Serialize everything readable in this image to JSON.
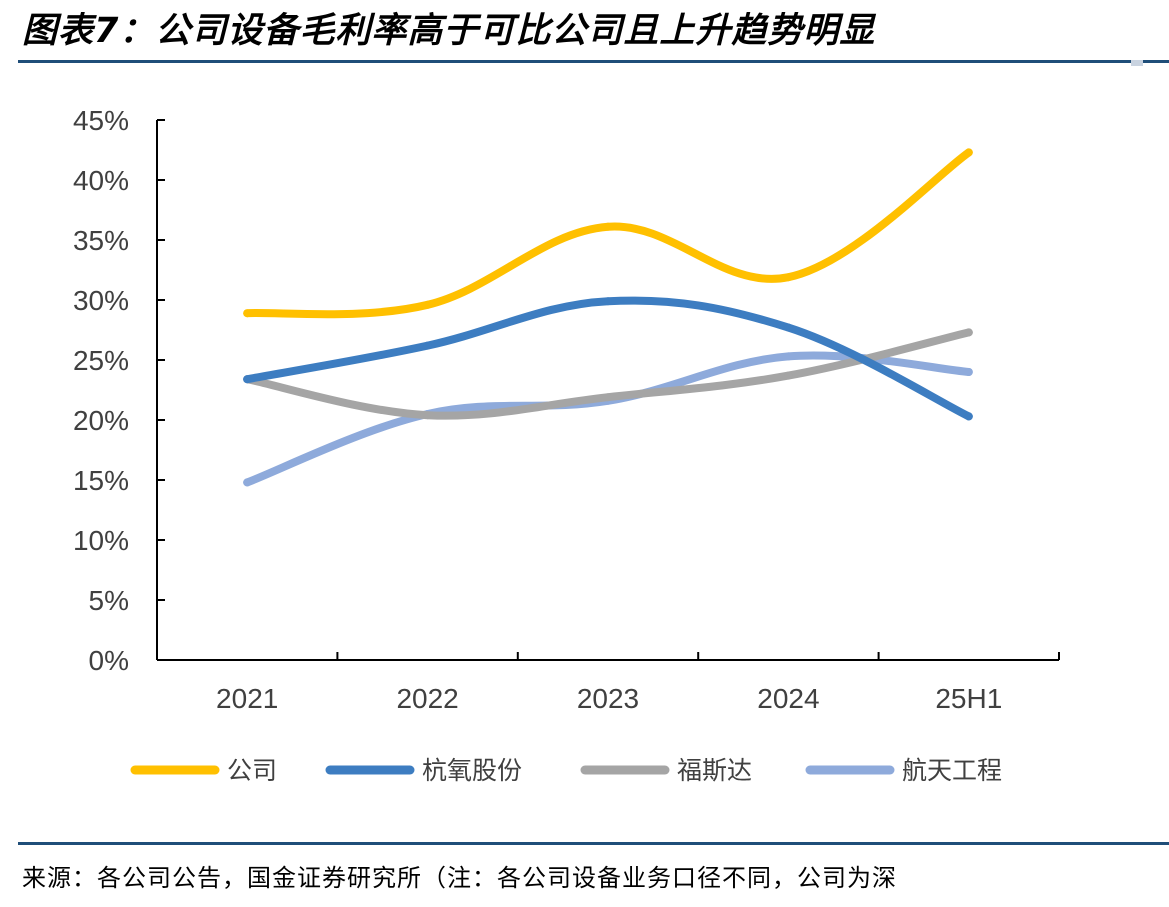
{
  "title": "图表7：公司设备毛利率高于可比公司且上升趋势明显",
  "source": "来源：各公司公告，国金证券研究所（注：各公司设备业务口径不同，公司为深",
  "chart_data": {
    "type": "line",
    "smooth": true,
    "categories": [
      "2021",
      "2022",
      "2023",
      "2024",
      "25H1"
    ],
    "ylim": [
      0,
      45
    ],
    "y_ticks": [
      0,
      5,
      10,
      15,
      20,
      25,
      30,
      35,
      40,
      45
    ],
    "y_tick_labels": [
      "0%",
      "5%",
      "10%",
      "15%",
      "20%",
      "25%",
      "30%",
      "35%",
      "40%",
      "45%"
    ],
    "unit": "%",
    "grid": false,
    "legend_position": "bottom",
    "series": [
      {
        "name": "公司",
        "color": "#FFC000",
        "values": [
          28.9,
          29.6,
          36.1,
          31.9,
          42.3
        ]
      },
      {
        "name": "杭氧股份",
        "color": "#3D7DC1",
        "values": [
          23.4,
          26.2,
          29.9,
          27.7,
          20.3
        ]
      },
      {
        "name": "福斯达",
        "color": "#A5A5A5",
        "values": [
          23.4,
          20.4,
          21.9,
          23.7,
          27.3
        ]
      },
      {
        "name": "航天工程",
        "color": "#8EAADB",
        "values": [
          14.8,
          20.5,
          21.6,
          25.3,
          24.0
        ]
      }
    ]
  }
}
